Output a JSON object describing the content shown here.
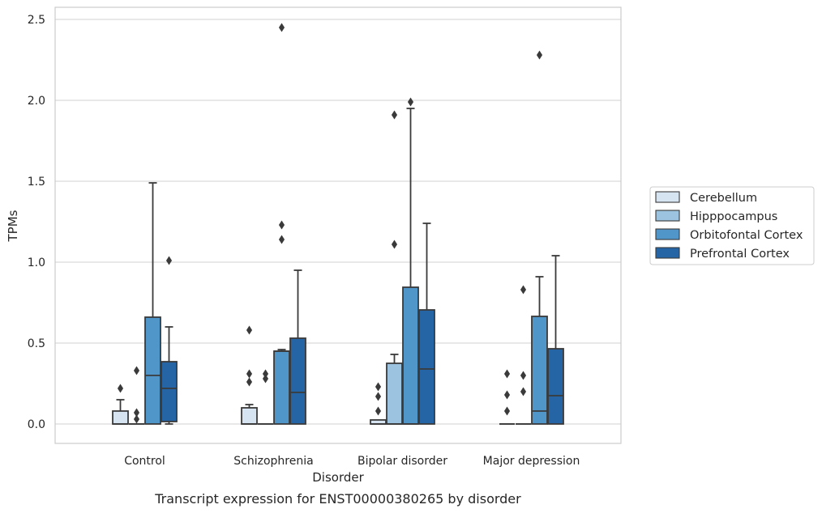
{
  "chart_data": {
    "type": "boxplot",
    "title": "",
    "xlabel": "Disorder",
    "ylabel": "TPMs",
    "caption": "Transcript expression for ENST00000380265 by disorder",
    "categories": [
      "Control",
      "Schizophrenia",
      "Bipolar disorder",
      "Major depression"
    ],
    "ylim": [
      -0.12,
      2.58
    ],
    "yticks": [
      "0.0",
      "0.5",
      "1.0",
      "1.5",
      "2.0",
      "2.5"
    ],
    "ytick_values": [
      0,
      0.5,
      1.0,
      1.5,
      2.0,
      2.5
    ],
    "grid": true,
    "legend_position": "right",
    "series": [
      {
        "name": "Cerebellum",
        "color": "#d6e4f2",
        "boxes": [
          {
            "q1": 0.0,
            "median": 0.0,
            "q3": 0.08,
            "whisker_low": 0.0,
            "whisker_high": 0.15,
            "outliers": [
              0.22
            ]
          },
          {
            "q1": 0.0,
            "median": 0.0,
            "q3": 0.1,
            "whisker_low": 0.0,
            "whisker_high": 0.12,
            "outliers": [
              0.26,
              0.31,
              0.58
            ]
          },
          {
            "q1": 0.0,
            "median": 0.0,
            "q3": 0.025,
            "whisker_low": 0.0,
            "whisker_high": 0.025,
            "outliers": [
              0.08,
              0.17,
              0.23
            ]
          },
          {
            "q1": 0.0,
            "median": 0.0,
            "q3": 0.0,
            "whisker_low": 0.0,
            "whisker_high": 0.0,
            "outliers": [
              0.08,
              0.18,
              0.31
            ]
          }
        ]
      },
      {
        "name": "Hipppocampus",
        "color": "#9cc3e0",
        "boxes": [
          {
            "q1": 0.0,
            "median": 0.0,
            "q3": 0.0,
            "whisker_low": 0.0,
            "whisker_high": 0.0,
            "outliers": [
              0.03,
              0.07,
              0.33
            ]
          },
          {
            "q1": 0.0,
            "median": 0.0,
            "q3": 0.0,
            "whisker_low": 0.0,
            "whisker_high": 0.0,
            "outliers": [
              0.28,
              0.31
            ]
          },
          {
            "q1": 0.0,
            "median": 0.0,
            "q3": 0.375,
            "whisker_low": 0.0,
            "whisker_high": 0.43,
            "outliers": [
              1.11,
              1.91
            ]
          },
          {
            "q1": 0.0,
            "median": 0.0,
            "q3": 0.0,
            "whisker_low": 0.0,
            "whisker_high": 0.0,
            "outliers": [
              0.2,
              0.3,
              0.83
            ]
          }
        ]
      },
      {
        "name": "Orbitofontal Cortex",
        "color": "#5196c8",
        "boxes": [
          {
            "q1": 0.0,
            "median": 0.3,
            "q3": 0.66,
            "whisker_low": 0.0,
            "whisker_high": 1.49,
            "outliers": []
          },
          {
            "q1": 0.0,
            "median": 0.45,
            "q3": 0.45,
            "whisker_low": 0.0,
            "whisker_high": 0.46,
            "outliers": [
              1.14,
              1.23,
              2.45
            ]
          },
          {
            "q1": 0.0,
            "median": 0.0,
            "q3": 0.845,
            "whisker_low": 0.0,
            "whisker_high": 1.95,
            "outliers": [
              1.99
            ]
          },
          {
            "q1": 0.0,
            "median": 0.08,
            "q3": 0.665,
            "whisker_low": 0.0,
            "whisker_high": 0.91,
            "outliers": [
              2.28
            ]
          }
        ]
      },
      {
        "name": "Prefrontal Cortex",
        "color": "#2565a5",
        "boxes": [
          {
            "q1": 0.015,
            "median": 0.22,
            "q3": 0.385,
            "whisker_low": 0.0,
            "whisker_high": 0.6,
            "outliers": [
              1.01
            ]
          },
          {
            "q1": 0.0,
            "median": 0.195,
            "q3": 0.53,
            "whisker_low": 0.0,
            "whisker_high": 0.95,
            "outliers": []
          },
          {
            "q1": 0.0,
            "median": 0.34,
            "q3": 0.705,
            "whisker_low": 0.0,
            "whisker_high": 1.24,
            "outliers": []
          },
          {
            "q1": 0.0,
            "median": 0.175,
            "q3": 0.465,
            "whisker_low": 0.0,
            "whisker_high": 1.04,
            "outliers": []
          }
        ]
      }
    ]
  }
}
